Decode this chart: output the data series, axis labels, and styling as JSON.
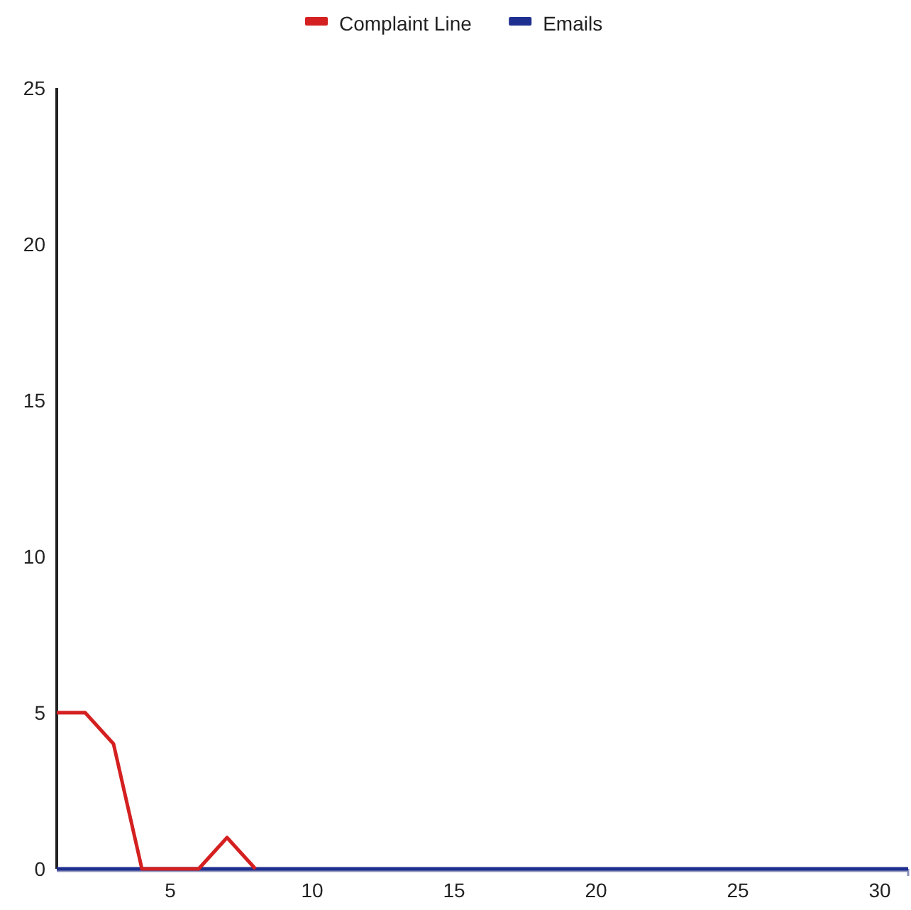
{
  "chart_data": {
    "type": "line",
    "series": [
      {
        "name": "Complaint Line",
        "color": "#d42020",
        "x": [
          1,
          2,
          3,
          4,
          5,
          6,
          7,
          8
        ],
        "values": [
          5,
          5,
          4,
          0,
          0,
          0,
          1,
          0
        ]
      },
      {
        "name": "Emails",
        "color": "#1f2f8f",
        "x": [
          1,
          31
        ],
        "values": [
          0,
          0
        ]
      }
    ],
    "xlim": [
      1,
      31
    ],
    "xticks": [
      5,
      10,
      15,
      20,
      25,
      30
    ],
    "ylim": [
      0,
      25
    ],
    "yticks": [
      0,
      5,
      10,
      15,
      20,
      25
    ],
    "grid": false,
    "legend": "top",
    "marker": "none",
    "line_style": "solid"
  }
}
